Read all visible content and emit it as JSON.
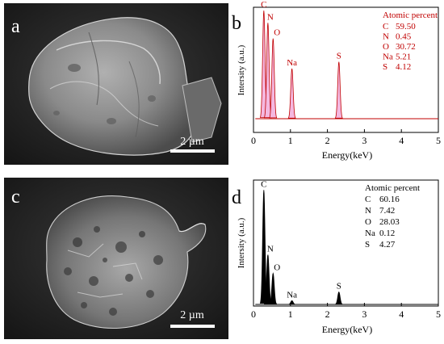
{
  "panels": {
    "a": {
      "letter": "a",
      "scale_label": "2 µm"
    },
    "b": {
      "letter": "b"
    },
    "c": {
      "letter": "c",
      "scale_label": "2 µm"
    },
    "d": {
      "letter": "d"
    }
  },
  "colors": {
    "spectrum_b": "#c00000",
    "spectrum_b_fill": "#f4b8e0",
    "spectrum_d": "#000000"
  },
  "chart_data": [
    {
      "type": "line",
      "panel": "b",
      "xlabel": "Energy(keV)",
      "ylabel": "Intersity (a.u.)",
      "xlim": [
        0,
        5
      ],
      "xticks": [
        0,
        1,
        2,
        3,
        4,
        5
      ],
      "peaks": [
        {
          "label": "C",
          "energy": 0.28,
          "height": 0.97
        },
        {
          "label": "N",
          "energy": 0.39,
          "height": 0.86
        },
        {
          "label": "O",
          "energy": 0.53,
          "height": 0.72
        },
        {
          "label": "Na",
          "energy": 1.04,
          "height": 0.45
        },
        {
          "label": "S",
          "energy": 2.31,
          "height": 0.51
        }
      ],
      "legend": {
        "title": "Atomic percent",
        "rows": [
          {
            "el": "C",
            "val": "59.50"
          },
          {
            "el": "N",
            "val": "0.45"
          },
          {
            "el": "O",
            "val": "30.72"
          },
          {
            "el": "Na",
            "val": "5.21"
          },
          {
            "el": "S",
            "val": "4.12"
          }
        ]
      }
    },
    {
      "type": "line",
      "panel": "d",
      "xlabel": "Energy(keV)",
      "ylabel": "Intersity (a.u.)",
      "xlim": [
        0,
        5
      ],
      "xticks": [
        0,
        1,
        2,
        3,
        4,
        5
      ],
      "peaks": [
        {
          "label": "C",
          "energy": 0.28,
          "height": 0.92
        },
        {
          "label": "N",
          "energy": 0.39,
          "height": 0.4
        },
        {
          "label": "O",
          "energy": 0.53,
          "height": 0.25
        },
        {
          "label": "Na",
          "energy": 1.04,
          "height": 0.03
        },
        {
          "label": "S",
          "energy": 2.31,
          "height": 0.1
        }
      ],
      "legend": {
        "title": "Atomic percent",
        "rows": [
          {
            "el": "C",
            "val": "60.16"
          },
          {
            "el": "N",
            "val": "7.42"
          },
          {
            "el": "O",
            "val": "28.03"
          },
          {
            "el": "Na",
            "val": "0.12"
          },
          {
            "el": "S",
            "val": "4.27"
          }
        ]
      }
    }
  ]
}
